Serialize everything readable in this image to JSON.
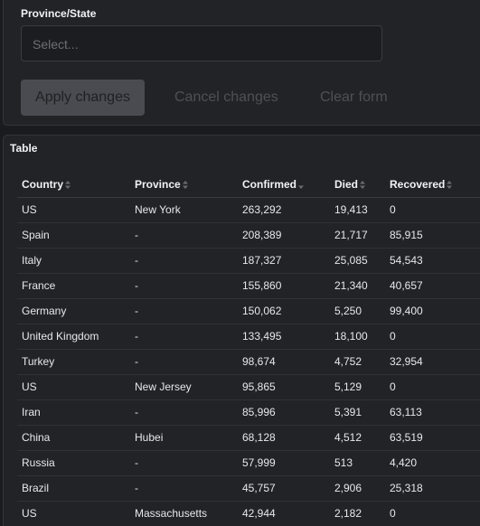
{
  "filters": {
    "province_label": "Province/State",
    "province_placeholder": "Select...",
    "apply_label": "Apply changes",
    "cancel_label": "Cancel changes",
    "clear_label": "Clear form"
  },
  "table": {
    "title": "Table",
    "columns": [
      "Country",
      "Province",
      "Confirmed",
      "Died",
      "Recovered"
    ],
    "rows": [
      [
        "US",
        "New York",
        "263,292",
        "19,413",
        "0"
      ],
      [
        "Spain",
        "-",
        "208,389",
        "21,717",
        "85,915"
      ],
      [
        "Italy",
        "-",
        "187,327",
        "25,085",
        "54,543"
      ],
      [
        "France",
        "-",
        "155,860",
        "21,340",
        "40,657"
      ],
      [
        "Germany",
        "-",
        "150,062",
        "5,250",
        "99,400"
      ],
      [
        "United Kingdom",
        "-",
        "133,495",
        "18,100",
        "0"
      ],
      [
        "Turkey",
        "-",
        "98,674",
        "4,752",
        "32,954"
      ],
      [
        "US",
        "New Jersey",
        "95,865",
        "5,129",
        "0"
      ],
      [
        "Iran",
        "-",
        "85,996",
        "5,391",
        "63,113"
      ],
      [
        "China",
        "Hubei",
        "68,128",
        "4,512",
        "63,519"
      ],
      [
        "Russia",
        "-",
        "57,999",
        "513",
        "4,420"
      ],
      [
        "Brazil",
        "-",
        "45,757",
        "2,906",
        "25,318"
      ],
      [
        "US",
        "Massachusetts",
        "42,944",
        "2,182",
        "0"
      ]
    ],
    "sorted_column": "Confirmed",
    "sort_direction": "descending"
  }
}
